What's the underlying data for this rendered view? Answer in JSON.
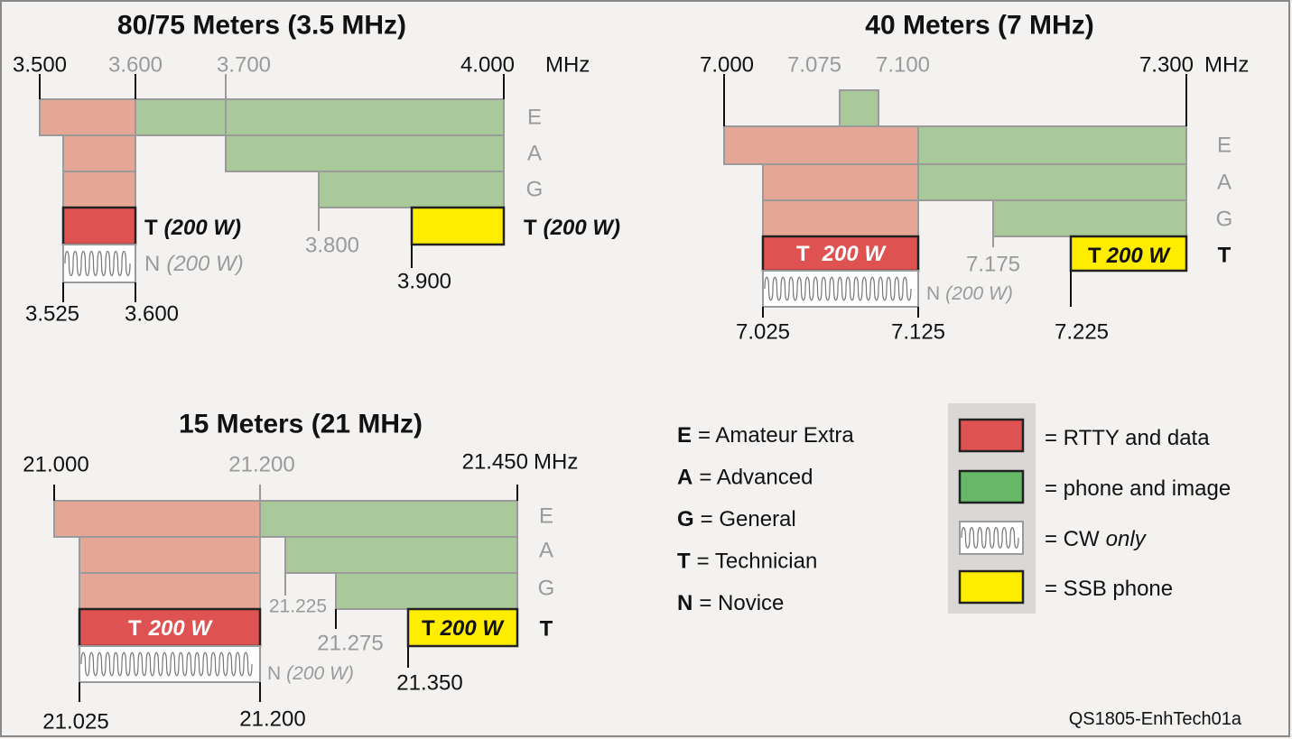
{
  "panels": [
    {
      "title": "80/75 Meters (3.5 MHz)",
      "unit": "MHz",
      "top_labels": [
        "3.500",
        "3.600",
        "3.700",
        "4.000"
      ],
      "classes": [
        "E",
        "A",
        "G"
      ],
      "t_left": {
        "class": "T",
        "power": "(200 W)"
      },
      "t_right": {
        "class": "T",
        "power": "(200 W)"
      },
      "novice": {
        "class": "N",
        "power": "(200 W)"
      },
      "bottom_labels": [
        "3.525",
        "3.600",
        "3.800",
        "3.900"
      ]
    },
    {
      "title": "40 Meters (7 MHz)",
      "unit": "MHz",
      "top_labels": [
        "7.000",
        "7.075",
        "7.100",
        "7.300"
      ],
      "classes": [
        "E",
        "A",
        "G",
        "T"
      ],
      "t_red": {
        "class": "T",
        "power": "200 W"
      },
      "t_yellow": {
        "class": "T",
        "power": "200 W"
      },
      "novice": {
        "class": "N",
        "power": "(200 W)"
      },
      "bottom_labels": [
        "7.175",
        "7.025",
        "7.125",
        "7.225"
      ]
    },
    {
      "title": "15 Meters (21 MHz)",
      "unit": "MHz",
      "top_labels": [
        "21.000",
        "21.200",
        "21.450"
      ],
      "classes": [
        "E",
        "A",
        "G",
        "T"
      ],
      "t_red": {
        "class": "T",
        "power": "200 W"
      },
      "t_yellow": {
        "class": "T",
        "power": "200 W"
      },
      "novice": {
        "class": "N",
        "power": "(200 W)"
      },
      "bottom_labels": [
        "21.225",
        "21.275",
        "21.350",
        "21.025",
        "21.200"
      ]
    }
  ],
  "license_legend": [
    {
      "letter": "E",
      "text": "= Amateur Extra"
    },
    {
      "letter": "A",
      "text": "= Advanced"
    },
    {
      "letter": "G",
      "text": "= General"
    },
    {
      "letter": "T",
      "text": "= Technician"
    },
    {
      "letter": "N",
      "text": "= Novice"
    }
  ],
  "mode_legend": [
    {
      "text": "= RTTY and data"
    },
    {
      "text": "= phone and image"
    },
    {
      "text": "= CW",
      "emphasis": "only"
    },
    {
      "text": "= SSB phone"
    }
  ],
  "figure_id": "QS1805-EnhTech01a"
}
